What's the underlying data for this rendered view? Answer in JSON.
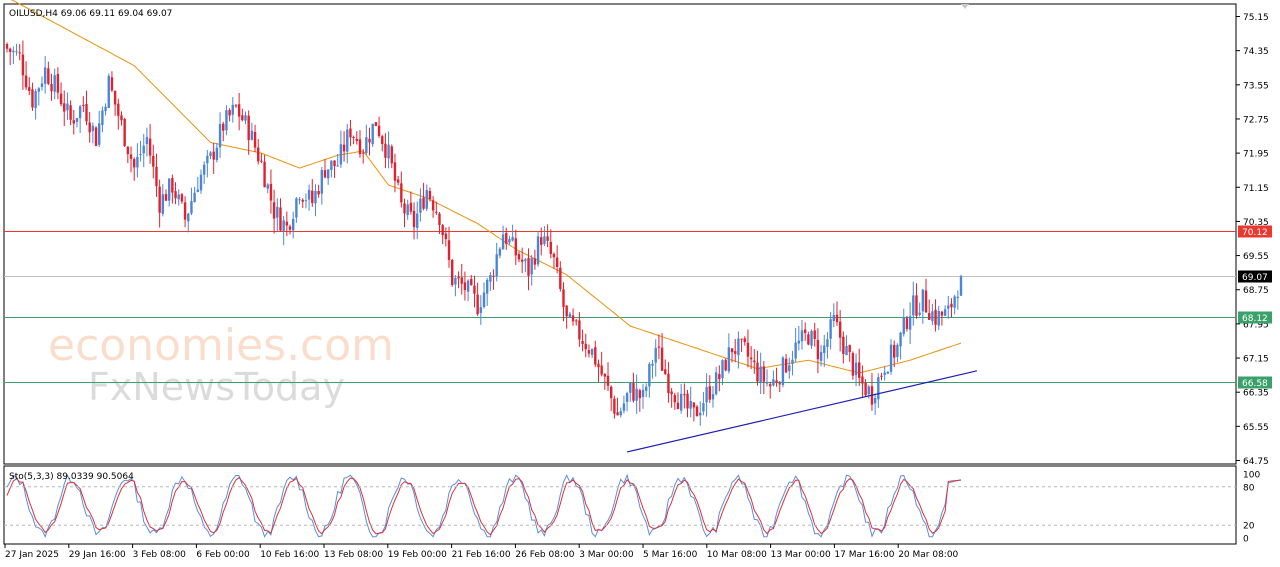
{
  "chart_data": {
    "type": "candlestick",
    "symbol_header": "OILUSD,H4  69.06 69.11 69.04 69.07",
    "price_axis": {
      "min": 64.75,
      "max": 75.15,
      "ticks": [
        "75.15",
        "74.35",
        "73.55",
        "72.75",
        "71.95",
        "71.15",
        "70.35",
        "69.55",
        "68.75",
        "67.95",
        "67.15",
        "66.35",
        "65.55",
        "64.75"
      ]
    },
    "time_axis_labels": [
      "27 Jan 2025",
      "29 Jan 16:00",
      "3 Feb 08:00",
      "6 Feb 00:00",
      "10 Feb 16:00",
      "13 Feb 08:00",
      "19 Feb 00:00",
      "21 Feb 16:00",
      "26 Feb 08:00",
      "3 Mar 00:00",
      "5 Mar 16:00",
      "10 Mar 08:00",
      "13 Mar 00:00",
      "17 Mar 16:00",
      "20 Mar 08:00"
    ],
    "close_anchors": [
      [
        0,
        74.4
      ],
      [
        4,
        74.2
      ],
      [
        8,
        73.2
      ],
      [
        12,
        73.9
      ],
      [
        16,
        73.4
      ],
      [
        20,
        72.7
      ],
      [
        24,
        73.1
      ],
      [
        28,
        72.3
      ],
      [
        32,
        73.6
      ],
      [
        36,
        72.6
      ],
      [
        40,
        71.6
      ],
      [
        44,
        72.3
      ],
      [
        48,
        70.8
      ],
      [
        52,
        71.2
      ],
      [
        56,
        70.4
      ],
      [
        60,
        71.3
      ],
      [
        64,
        71.8
      ],
      [
        68,
        72.6
      ],
      [
        72,
        73.0
      ],
      [
        76,
        72.5
      ],
      [
        80,
        71.7
      ],
      [
        84,
        70.6
      ],
      [
        88,
        70.2
      ],
      [
        92,
        71.1
      ],
      [
        96,
        70.8
      ],
      [
        100,
        71.6
      ],
      [
        104,
        71.7
      ],
      [
        108,
        72.5
      ],
      [
        112,
        72.1
      ],
      [
        116,
        72.7
      ],
      [
        120,
        71.9
      ],
      [
        124,
        70.7
      ],
      [
        128,
        70.3
      ],
      [
        132,
        71.1
      ],
      [
        136,
        70.5
      ],
      [
        140,
        69.0
      ],
      [
        144,
        68.8
      ],
      [
        148,
        68.4
      ],
      [
        152,
        69.0
      ],
      [
        156,
        70.1
      ],
      [
        160,
        69.6
      ],
      [
        164,
        69.2
      ],
      [
        168,
        70.0
      ],
      [
        172,
        69.4
      ],
      [
        176,
        68.0
      ],
      [
        180,
        67.7
      ],
      [
        184,
        67.3
      ],
      [
        188,
        66.6
      ],
      [
        192,
        65.8
      ],
      [
        196,
        66.4
      ],
      [
        200,
        66.2
      ],
      [
        204,
        67.4
      ],
      [
        208,
        66.6
      ],
      [
        212,
        66.1
      ],
      [
        216,
        65.8
      ],
      [
        220,
        66.3
      ],
      [
        224,
        66.7
      ],
      [
        228,
        67.4
      ],
      [
        232,
        67.3
      ],
      [
        236,
        66.8
      ],
      [
        240,
        66.5
      ],
      [
        244,
        66.9
      ],
      [
        248,
        67.4
      ],
      [
        252,
        67.7
      ],
      [
        256,
        67.2
      ],
      [
        260,
        68.0
      ],
      [
        264,
        67.3
      ],
      [
        268,
        66.6
      ],
      [
        272,
        66.3
      ],
      [
        276,
        67.0
      ],
      [
        280,
        67.4
      ],
      [
        284,
        68.3
      ],
      [
        288,
        68.5
      ],
      [
        292,
        68.1
      ],
      [
        296,
        68.2
      ],
      [
        300,
        69.07
      ]
    ],
    "moving_average": {
      "color": "#e8930c",
      "anchors": [
        [
          0,
          75.6
        ],
        [
          40,
          74.0
        ],
        [
          64,
          72.2
        ],
        [
          80,
          71.95
        ],
        [
          92,
          71.6
        ],
        [
          104,
          71.9
        ],
        [
          112,
          72.0
        ],
        [
          120,
          71.2
        ],
        [
          132,
          70.9
        ],
        [
          148,
          70.3
        ],
        [
          160,
          69.7
        ],
        [
          176,
          69.1
        ],
        [
          196,
          67.9
        ],
        [
          216,
          67.4
        ],
        [
          236,
          66.9
        ],
        [
          252,
          67.1
        ],
        [
          268,
          66.8
        ],
        [
          284,
          67.1
        ],
        [
          300,
          67.5
        ]
      ]
    },
    "horizontal_lines": [
      {
        "label": "70.12",
        "value": 70.12,
        "color": "#e8382f"
      },
      {
        "label": "69.07",
        "value": 69.07,
        "color": "#c0c0c0",
        "text_color": "#ffffff",
        "label_bg": "#000000"
      },
      {
        "label": "68.12",
        "value": 68.12,
        "color": "#3aa16b"
      },
      {
        "label": "66.58",
        "value": 66.58,
        "color": "#3aa16b"
      }
    ],
    "trendline": {
      "color": "#1f1fb8",
      "start": [
        195,
        64.95
      ],
      "end": [
        305,
        66.85
      ]
    },
    "colors": {
      "bull": "#4a86d8",
      "bear": "#e0212f",
      "grid": "#000000"
    },
    "stochastic": {
      "header": "Sto(5,3,3) 89.0339 90.5064",
      "levels": [
        "100",
        "80",
        "20",
        "0"
      ],
      "main_color": "#5b8fdb",
      "signal_color": "#d9323c"
    }
  },
  "watermark": {
    "brand_top": "economies.com",
    "brand_bottom": "FxNewsToday"
  }
}
